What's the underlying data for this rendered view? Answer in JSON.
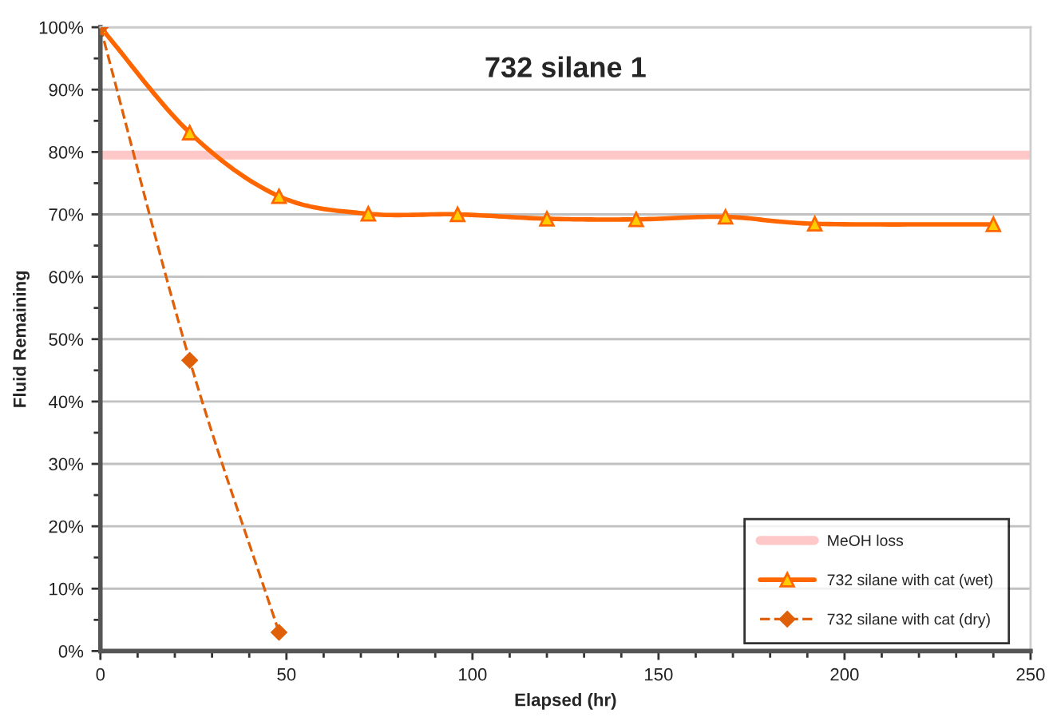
{
  "chart_data": {
    "type": "line",
    "title": "732 silane 1",
    "xlabel": "Elapsed (hr)",
    "ylabel": "Fluid Remaining",
    "xlim": [
      0,
      250
    ],
    "xticks": [
      0,
      50,
      100,
      150,
      200,
      250
    ],
    "ylim": [
      0,
      100
    ],
    "yticks": [
      {
        "value": 0,
        "label": "0%"
      },
      {
        "value": 10,
        "label": "10%"
      },
      {
        "value": 20,
        "label": "20%"
      },
      {
        "value": 30,
        "label": "30%"
      },
      {
        "value": 40,
        "label": "40%"
      },
      {
        "value": 50,
        "label": "50%"
      },
      {
        "value": 60,
        "label": "60%"
      },
      {
        "value": 70,
        "label": "70%"
      },
      {
        "value": 80,
        "label": "80%"
      },
      {
        "value": 90,
        "label": "90%"
      },
      {
        "value": 100,
        "label": "100%"
      }
    ],
    "grid": "y",
    "legend": "bottom right",
    "ref_lines": [
      {
        "axis": "y",
        "value": 79.5,
        "label": "MeOH loss",
        "color": "#ffc8c8"
      }
    ],
    "series": [
      {
        "name": "732 silane with cat (wet)",
        "color": "#ff6600",
        "marker": "triangle",
        "line_style": "solid",
        "x": [
          0,
          24,
          48,
          72,
          96,
          120,
          144,
          168,
          192,
          240
        ],
        "values": [
          100,
          83.1,
          72.9,
          70.1,
          70.0,
          69.3,
          69.2,
          69.6,
          68.5,
          68.4
        ]
      },
      {
        "name": "732 silane with cat (dry)",
        "color": "#e0600a",
        "marker": "diamond",
        "line_style": "dashed",
        "x": [
          0,
          24,
          48
        ],
        "values": [
          100,
          46.6,
          3.0
        ]
      }
    ]
  }
}
